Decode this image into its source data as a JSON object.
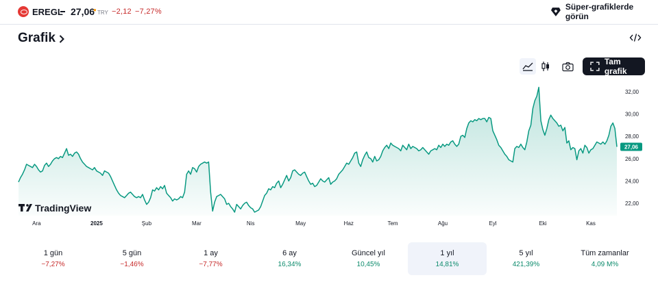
{
  "ticker": {
    "symbol": "EREGL",
    "price": "27,06",
    "live_marker": "●",
    "currency": "TRY",
    "change": "−2,12",
    "change_percent": "−7,27%",
    "super_charts_label": "Süper-grafiklerde görün",
    "colors": {
      "negative": "#c62828",
      "brand": "#e53935"
    }
  },
  "section": {
    "title": "Grafik"
  },
  "toolbar": {
    "chart_style_area": "area-chart-icon",
    "chart_style_candles": "candlestick-icon",
    "snapshot": "camera-icon",
    "fullscreen_label": "Tam grafik"
  },
  "chart_data": {
    "type": "area",
    "title": "",
    "xlabel": "",
    "ylabel": "",
    "ylim": [
      21.0,
      33.0
    ],
    "y_ticks": [
      "32,00",
      "30,00",
      "28,00",
      "26,00",
      "24,00",
      "22,00"
    ],
    "y_tick_values": [
      32,
      30,
      28,
      26,
      24,
      22
    ],
    "x_ticks": [
      "Ara",
      "2025",
      "Şub",
      "Mar",
      "Nis",
      "May",
      "Haz",
      "Tem",
      "Ağu",
      "Eyl",
      "Eki",
      "Kas"
    ],
    "x_tick_index": [
      9,
      39,
      64,
      89,
      116,
      141,
      165,
      187,
      212,
      237,
      262,
      286
    ],
    "last_price_label": "27,06",
    "watermark": "TradingView",
    "grid": false,
    "colors": {
      "line": "#089981",
      "fill_top": "#089981",
      "last_price_bg": "#089981"
    },
    "series": [
      {
        "values": [
          23.9,
          24.3,
          24.6,
          25.0,
          25.5,
          25.4,
          25.3,
          25.2,
          25.5,
          25.3,
          25.0,
          24.8,
          24.9,
          25.4,
          25.6,
          25.3,
          25.5,
          25.8,
          26.0,
          26.1,
          26.0,
          26.2,
          26.1,
          26.5,
          26.9,
          26.3,
          26.4,
          26.2,
          26.5,
          26.6,
          26.4,
          26.0,
          25.7,
          25.5,
          25.3,
          25.2,
          25.1,
          25.0,
          25.2,
          24.9,
          24.8,
          24.7,
          24.5,
          24.9,
          24.8,
          24.7,
          24.4,
          24.0,
          23.6,
          23.2,
          22.9,
          22.7,
          22.6,
          22.5,
          22.7,
          22.9,
          23.0,
          22.8,
          22.6,
          22.5,
          22.6,
          22.5,
          22.8,
          22.3,
          21.9,
          22.1,
          22.5,
          23.2,
          23.1,
          23.4,
          23.2,
          23.5,
          23.3,
          23.6,
          22.9,
          22.7,
          22.5,
          22.2,
          22.4,
          22.3,
          22.4,
          22.6,
          22.5,
          23.0,
          24.6,
          24.9,
          24.6,
          25.2,
          25.1,
          24.8,
          25.3,
          25.5,
          25.6,
          25.7,
          25.6,
          25.7,
          23.0,
          21.3,
          22.1,
          22.6,
          22.7,
          22.8,
          22.6,
          22.4,
          21.9,
          22.0,
          21.7,
          21.5,
          21.2,
          21.9,
          21.7,
          21.5,
          21.8,
          22.0,
          22.1,
          21.8,
          21.6,
          21.5,
          21.2,
          21.3,
          21.4,
          21.7,
          22.2,
          22.7,
          22.9,
          23.3,
          23.2,
          23.5,
          23.4,
          23.8,
          24.0,
          23.4,
          23.7,
          24.1,
          24.5,
          24.0,
          24.3,
          24.9,
          25.0,
          24.8,
          24.6,
          24.5,
          24.7,
          24.8,
          24.4,
          24.0,
          23.7,
          23.8,
          23.5,
          23.6,
          23.9,
          24.2,
          24.0,
          23.9,
          24.1,
          24.3,
          23.7,
          23.9,
          24.0,
          24.2,
          24.6,
          24.8,
          25.0,
          25.3,
          25.6,
          25.5,
          25.8,
          26.1,
          26.5,
          26.6,
          25.6,
          25.3,
          25.9,
          26.3,
          26.6,
          26.1,
          26.0,
          25.7,
          26.2,
          25.8,
          25.9,
          26.2,
          26.7,
          27.0,
          27.2,
          26.9,
          27.4,
          27.2,
          27.1,
          27.0,
          26.9,
          26.7,
          27.2,
          27.0,
          26.8,
          27.3,
          26.9,
          27.1,
          27.0,
          26.9,
          26.7,
          26.8,
          27.0,
          26.8,
          26.6,
          26.4,
          26.7,
          26.8,
          26.9,
          26.8,
          27.2,
          27.0,
          27.3,
          27.1,
          27.3,
          27.2,
          27.5,
          27.6,
          27.3,
          27.1,
          27.3,
          28.0,
          28.1,
          27.9,
          28.7,
          29.2,
          29.4,
          29.3,
          29.5,
          29.4,
          29.6,
          29.5,
          29.6,
          29.6,
          29.3,
          29.7,
          29.6,
          28.5,
          28.1,
          27.7,
          27.2,
          27.0,
          26.7,
          26.4,
          26.2,
          25.9,
          25.8,
          25.7,
          26.9,
          27.1,
          27.0,
          27.3,
          27.0,
          26.8,
          27.5,
          28.5,
          29.0,
          30.5,
          31.2,
          31.6,
          32.4,
          29.4,
          28.6,
          28.1,
          28.7,
          29.5,
          29.9,
          29.6,
          29.4,
          29.2,
          28.9,
          29.0,
          28.5,
          28.8,
          27.4,
          27.6,
          26.8,
          27.0,
          26.9,
          25.9,
          26.7,
          26.9,
          26.5,
          27.2,
          27.0,
          26.5,
          26.8,
          26.9,
          27.2,
          27.5,
          27.4,
          27.3,
          27.5,
          27.3,
          27.6,
          28.1,
          28.9,
          29.2,
          28.7,
          27.06
        ]
      }
    ]
  },
  "periods": [
    {
      "label": "1 gün",
      "value": "−7,27%",
      "direction": "negative",
      "active": false
    },
    {
      "label": "5 gün",
      "value": "−1,46%",
      "direction": "negative",
      "active": false
    },
    {
      "label": "1 ay",
      "value": "−7,77%",
      "direction": "negative",
      "active": false
    },
    {
      "label": "6 ay",
      "value": "16,34%",
      "direction": "positive",
      "active": false
    },
    {
      "label": "Güncel yıl",
      "value": "10,45%",
      "direction": "positive",
      "active": false
    },
    {
      "label": "1 yıl",
      "value": "14,81%",
      "direction": "positive",
      "active": true
    },
    {
      "label": "5 yıl",
      "value": "421,39%",
      "direction": "positive",
      "active": false
    },
    {
      "label": "Tüm zamanlar",
      "value": "4,09 M%",
      "direction": "positive",
      "active": false
    }
  ]
}
